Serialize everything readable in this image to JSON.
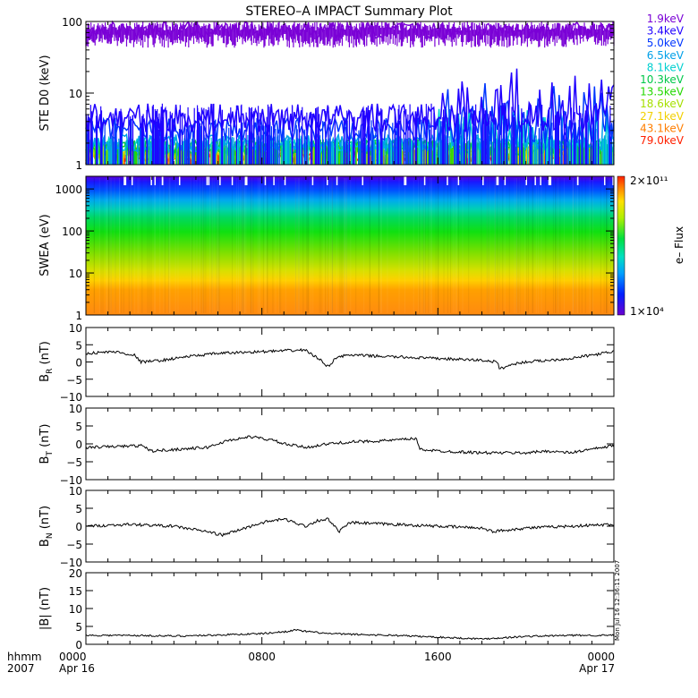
{
  "title": "STEREO–A IMPACT Summary Plot",
  "footer": {
    "left_top": "hhmm",
    "left_bottom": "2007",
    "ticks": [
      {
        "label": "0000",
        "sub": "Apr 16",
        "hour": 0
      },
      {
        "label": "0800",
        "sub": "",
        "hour": 8
      },
      {
        "label": "1600",
        "sub": "",
        "hour": 16
      },
      {
        "label": "0000",
        "sub": "Apr 17",
        "hour": 24
      }
    ]
  },
  "stamp": "Mon Jul 16 12:36:11 2007",
  "colors": {
    "ste_energies": [
      "#7a00d6",
      "#2000ff",
      "#0036ff",
      "#00a0e8",
      "#00d0d0",
      "#00c84a",
      "#24d800",
      "#a6e000",
      "#f2d000",
      "#ff7e00",
      "#ff2000"
    ]
  },
  "chart_data": [
    {
      "panel": "ste",
      "type": "line",
      "ylabel": "STE D0 (keV)",
      "yscale": "log",
      "ylim": [
        1,
        100
      ],
      "yticks": [
        "1",
        "10",
        "100"
      ],
      "xlim": [
        0,
        24
      ],
      "legend": [
        "1.9keV",
        "3.4keV",
        "5.0keV",
        "6.5keV",
        "8.1keV",
        "10.3keV",
        "13.5keV",
        "18.6keV",
        "27.1keV",
        "43.1keV",
        "79.0keV"
      ],
      "legend_position": "right",
      "series": [
        {
          "name": "1.9keV",
          "level": 75,
          "spread": 0.12
        },
        {
          "name": "3.4keV",
          "level": 4.5,
          "spread": 0.2
        },
        {
          "name": "5.0keV",
          "level": 3.0,
          "spread": 0.18
        },
        {
          "name": "6.5keV",
          "level": 2.0,
          "spread": 0.12
        },
        {
          "name": "8.1keV",
          "level": 1.9,
          "spread": 0.1
        },
        {
          "name": "10.3keV",
          "level": 1.8,
          "spread": 0.1
        },
        {
          "name": "13.5keV",
          "level": 1.7,
          "spread": 0.1
        },
        {
          "name": "18.6keV",
          "level": 1.6,
          "spread": 0.1
        },
        {
          "name": "27.1keV",
          "level": 1.5,
          "spread": 0.1
        },
        {
          "name": "43.1keV",
          "level": 1.4,
          "spread": 0.1
        },
        {
          "name": "79.0keV",
          "level": 1.3,
          "spread": 0.1
        }
      ]
    },
    {
      "panel": "swea",
      "type": "heatmap",
      "ylabel": "SWEA (eV)",
      "yscale": "log",
      "ylim": [
        1,
        2000
      ],
      "yticks": [
        "1",
        "10",
        "100",
        "1000"
      ],
      "xlim": [
        0,
        24
      ],
      "colorbar": {
        "label": "e– Flux",
        "min": "1×10⁴",
        "max": "2×10¹¹"
      }
    },
    {
      "panel": "br",
      "type": "line",
      "ylabel": "B",
      "ylabel_sub": "R",
      "ylabel_unit": " (nT)",
      "ylim": [
        -10,
        10
      ],
      "yticks": [
        "−10",
        "−5",
        "0",
        "5",
        "10"
      ],
      "xlim": [
        0,
        24
      ],
      "x": [
        0,
        1.3,
        2.2,
        2.5,
        3.5,
        4.5,
        6,
        8,
        10,
        10.3,
        10.8,
        11,
        11.4,
        12,
        14,
        16,
        18,
        18.7,
        18.8,
        19.5,
        20,
        22,
        23,
        24
      ],
      "y": [
        2.5,
        3,
        2,
        0,
        0.5,
        1.5,
        2.5,
        3,
        3.5,
        2,
        0,
        -1.5,
        1.5,
        2,
        1.5,
        1,
        0.5,
        0,
        -2,
        -0.5,
        0,
        1,
        2,
        3
      ]
    },
    {
      "panel": "bt",
      "type": "line",
      "ylabel": "B",
      "ylabel_sub": "T",
      "ylabel_unit": " (nT)",
      "ylim": [
        -10,
        10
      ],
      "yticks": [
        "−10",
        "−5",
        "0",
        "5",
        "10"
      ],
      "xlim": [
        0,
        24
      ],
      "x": [
        0,
        2.5,
        3,
        5.5,
        6.5,
        7.5,
        8.5,
        9,
        10,
        11,
        12,
        14,
        15,
        15.2,
        16,
        18,
        20,
        21,
        22,
        23,
        24
      ],
      "y": [
        -1,
        -0.5,
        -2,
        -1,
        1,
        2,
        1,
        0,
        -1,
        0,
        0.5,
        1,
        1.5,
        -1.5,
        -2,
        -2.5,
        -2.5,
        -2,
        -2.5,
        -1.5,
        -0.5
      ]
    },
    {
      "panel": "bn",
      "type": "line",
      "ylabel": "B",
      "ylabel_sub": "N",
      "ylabel_unit": " (nT)",
      "ylim": [
        -10,
        10
      ],
      "yticks": [
        "−10",
        "−5",
        "0",
        "5",
        "10"
      ],
      "xlim": [
        0,
        24
      ],
      "x": [
        0,
        2,
        4,
        5.5,
        6.2,
        7,
        8,
        9,
        10,
        10.5,
        11,
        11.5,
        12,
        14,
        16,
        18,
        18.5,
        20,
        22,
        24
      ],
      "y": [
        0,
        0.5,
        0,
        -1.5,
        -2.5,
        -1,
        1,
        2,
        0,
        1.5,
        2,
        -1.5,
        1,
        0.5,
        0,
        -0.5,
        -1.5,
        -0.5,
        0,
        0.5
      ]
    },
    {
      "panel": "bmag",
      "type": "line",
      "ylabel": "|B| (nT)",
      "ylim": [
        0,
        20
      ],
      "yticks": [
        "0",
        "5",
        "10",
        "15",
        "20"
      ],
      "xlim": [
        0,
        24
      ],
      "x": [
        0,
        2,
        4,
        6,
        7,
        8,
        9,
        9.5,
        10,
        11,
        12,
        14,
        16,
        18,
        20,
        22,
        24
      ],
      "y": [
        2.5,
        2.5,
        2.3,
        2.6,
        2.8,
        3,
        3.5,
        4,
        3.6,
        3,
        2.8,
        2.5,
        2,
        1.5,
        2.2,
        2.5,
        2.5
      ]
    }
  ]
}
